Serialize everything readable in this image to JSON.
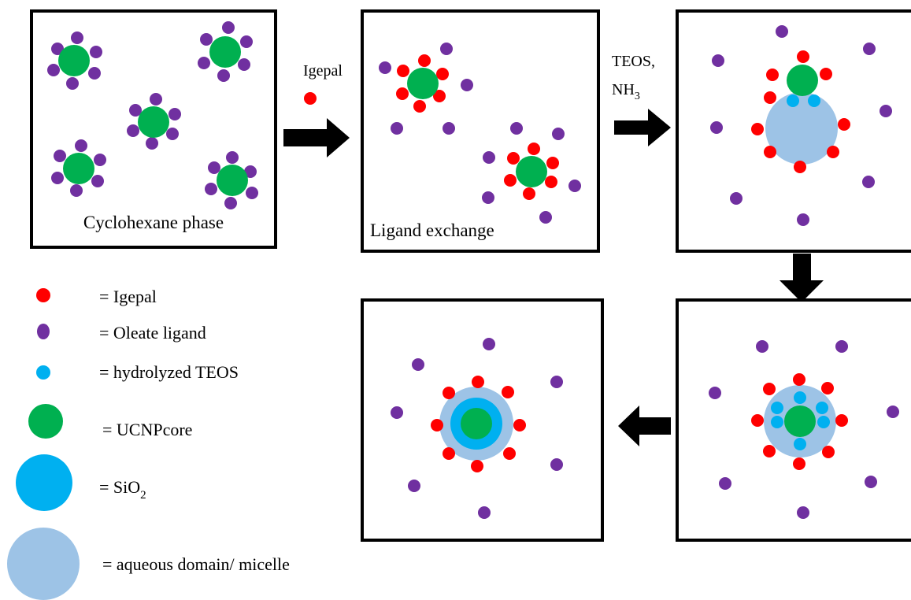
{
  "colors": {
    "igepal": "#ff0000",
    "oleate": "#7030a0",
    "teos": "#00b0f0",
    "ucnp": "#00b050",
    "sio2": "#00b0f0",
    "micelle": "#9dc3e6",
    "arrow": "#000000"
  },
  "labels": {
    "panel1": "Cyclohexane phase",
    "panel2": "Ligand exchange",
    "arrow1": "Igepal",
    "arrow2_line1": "TEOS,",
    "arrow2_line2_main": "NH",
    "arrow2_line2_sub": "3"
  },
  "legend": [
    {
      "key": "igepal",
      "text": "= Igepal"
    },
    {
      "key": "oleate",
      "text": "= Oleate  ligand"
    },
    {
      "key": "teos",
      "text": "= hydrolyzed  TEOS"
    },
    {
      "key": "ucnp",
      "text": "= UCNPcore"
    },
    {
      "key": "sio2",
      "text_main": "= SiO",
      "text_sub": "2"
    },
    {
      "key": "micelle",
      "text": "= aqueous  domain/  micelle"
    }
  ]
}
